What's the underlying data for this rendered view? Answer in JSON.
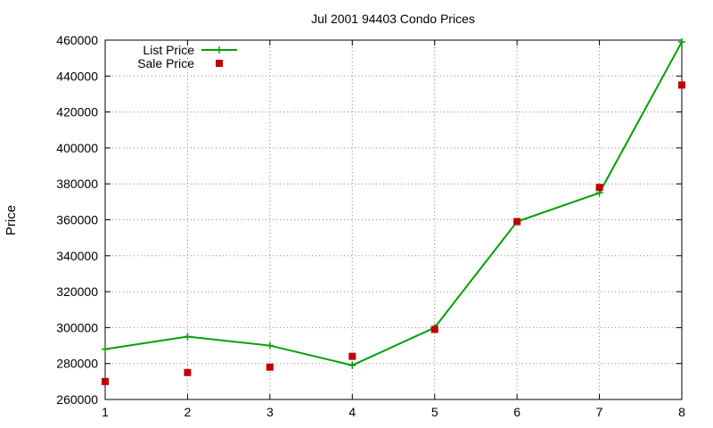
{
  "chart_data": {
    "type": "line",
    "title": "Jul 2001 94403 Condo Prices",
    "xlabel": "",
    "ylabel": "Price",
    "xlim": [
      1,
      8
    ],
    "ylim": [
      260000,
      460000
    ],
    "xticks": [
      1,
      2,
      3,
      4,
      5,
      6,
      7,
      8
    ],
    "yticks": [
      260000,
      280000,
      300000,
      320000,
      340000,
      360000,
      380000,
      400000,
      420000,
      440000,
      460000
    ],
    "grid": true,
    "legend_position": "top-left",
    "x": [
      1,
      2,
      3,
      4,
      5,
      6,
      7,
      8
    ],
    "series": [
      {
        "name": "List Price",
        "style": "lines-points",
        "marker": "plus",
        "color": "#00a000",
        "values": [
          288000,
          295000,
          290000,
          279000,
          300000,
          359000,
          375000,
          459000
        ]
      },
      {
        "name": "Sale Price",
        "style": "points",
        "marker": "square",
        "color": "#c00000",
        "values": [
          270000,
          275000,
          278000,
          284000,
          299000,
          359000,
          378000,
          435000
        ]
      }
    ]
  }
}
